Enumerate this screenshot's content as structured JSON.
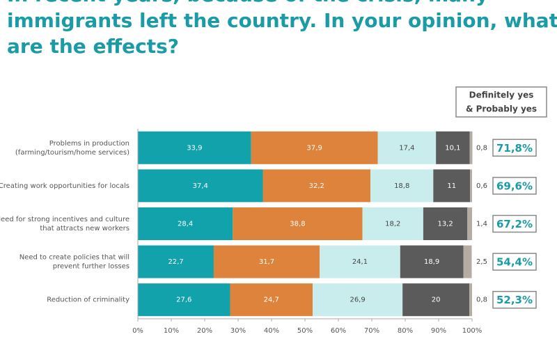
{
  "chart_data": {
    "type": "stacked-bar-horizontal",
    "title": [
      "In recent years, because of the crisis, many",
      "immigrants left the country. In your opinion, what",
      "are the effects?"
    ],
    "categories": [
      [
        "Problems in production",
        "(farming/tourism/home services)"
      ],
      [
        "Creating work opportunities for locals"
      ],
      [
        "Need for strong incentives and culture",
        "that attracts new workers"
      ],
      [
        "Need to create policies that will",
        "prevent further losses"
      ],
      [
        "Reduction of criminality"
      ]
    ],
    "series": [
      {
        "color": "#12a2ac",
        "values": [
          33.9,
          37.4,
          28.4,
          22.7,
          27.6
        ],
        "value_labels": [
          "33,9",
          "37,4",
          "28,4",
          "22,7",
          "27,6"
        ]
      },
      {
        "color": "#de833b",
        "values": [
          37.9,
          32.2,
          38.8,
          31.7,
          24.7
        ],
        "value_labels": [
          "37,9",
          "32,2",
          "38,8",
          "31,7",
          "24,7"
        ]
      },
      {
        "color": "#c9ecec",
        "values": [
          17.4,
          18.8,
          18.2,
          24.1,
          26.9
        ],
        "value_labels": [
          "17,4",
          "18,8",
          "18,2",
          "24,1",
          "26,9"
        ]
      },
      {
        "color": "#5b5b5b",
        "values": [
          10.1,
          11,
          13.2,
          18.9,
          20
        ],
        "value_labels": [
          "10,1",
          "11",
          "13,2",
          "18,9",
          "20"
        ]
      },
      {
        "color": "#b5ada3",
        "values": [
          0.8,
          0.6,
          1.4,
          2.5,
          0.8
        ],
        "value_labels": [
          "0,8",
          "0,6",
          "1,4",
          "2,5",
          "0,8"
        ]
      }
    ],
    "totals_title": [
      "Definitely yes",
      "& Probably yes"
    ],
    "totals": {
      "values": [
        71.8,
        69.6,
        67.2,
        54.4,
        52.3
      ],
      "value_labels": [
        "71,8%",
        "69,6%",
        "67,2%",
        "54,4%",
        "52,3%"
      ]
    },
    "xlim": [
      0,
      100
    ],
    "xticks": [
      {
        "value": 0,
        "label": "0%"
      },
      {
        "value": 10,
        "label": "10%"
      },
      {
        "value": 20,
        "label": "20%"
      },
      {
        "value": 30,
        "label": "30%"
      },
      {
        "value": 40,
        "label": "40%"
      },
      {
        "value": 50,
        "label": "50%"
      },
      {
        "value": 60,
        "label": "60%"
      },
      {
        "value": 70,
        "label": "70%"
      },
      {
        "value": 80,
        "label": "80%"
      },
      {
        "value": 90,
        "label": "90%"
      },
      {
        "value": 100,
        "label": "100%"
      }
    ]
  }
}
